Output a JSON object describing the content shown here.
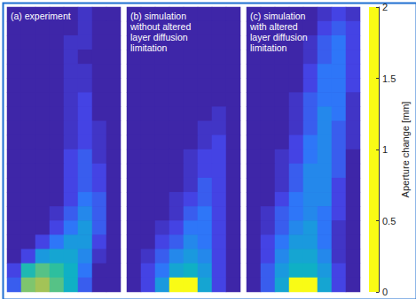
{
  "chart_data": {
    "type": "heatmap",
    "panels": [
      {
        "label": "(a) experiment",
        "cells": [
          [
            0,
            0,
            0,
            0,
            0,
            0.1,
            0,
            0
          ],
          [
            0,
            0,
            0,
            0,
            0,
            0.1,
            0,
            0
          ],
          [
            0,
            0,
            0,
            0,
            0.1,
            0.1,
            0,
            0
          ],
          [
            0,
            0,
            0,
            0,
            0.1,
            0,
            0,
            0
          ],
          [
            0,
            0,
            0,
            0,
            0.1,
            0.1,
            0,
            0
          ],
          [
            0,
            0,
            0,
            0,
            0.1,
            0.1,
            0,
            0
          ],
          [
            0,
            0,
            0,
            0,
            0.1,
            0.2,
            0,
            0
          ],
          [
            0,
            0,
            0,
            0,
            0.1,
            0.2,
            0,
            0
          ],
          [
            0,
            0,
            0,
            0,
            0.1,
            0.2,
            0.1,
            0
          ],
          [
            0,
            0,
            0,
            0,
            0.1,
            0.2,
            0.1,
            0
          ],
          [
            0,
            0,
            0,
            0,
            0.2,
            0.3,
            0.1,
            0
          ],
          [
            0,
            0,
            0,
            0,
            0.2,
            0.3,
            0.2,
            0
          ],
          [
            0,
            0,
            0,
            0,
            0.2,
            0.3,
            0.2,
            0
          ],
          [
            0,
            0,
            0,
            0,
            0.2,
            0.4,
            0.3,
            0
          ],
          [
            0,
            0,
            0,
            0.1,
            0.3,
            0.5,
            0.3,
            0
          ],
          [
            0,
            0,
            0,
            0.2,
            0.4,
            0.6,
            0.3,
            0
          ],
          [
            0,
            0,
            0.2,
            0.4,
            0.6,
            0.6,
            0.2,
            0
          ],
          [
            0,
            0.2,
            0.6,
            0.7,
            0.7,
            0.5,
            0.1,
            0
          ],
          [
            0.2,
            0.9,
            1.1,
            1.0,
            0.8,
            0.4,
            0,
            0
          ],
          [
            0.3,
            1.2,
            1.3,
            1.1,
            0.8,
            0.3,
            0,
            0
          ]
        ]
      },
      {
        "label": "(b) simulation\nwithout altered\nlayer diffusion\nlimitation",
        "cells": [
          [
            0,
            0,
            0,
            0,
            0,
            0,
            0,
            0
          ],
          [
            0,
            0,
            0,
            0,
            0,
            0,
            0,
            0
          ],
          [
            0,
            0,
            0,
            0,
            0,
            0,
            0,
            0
          ],
          [
            0,
            0,
            0,
            0,
            0,
            0,
            0,
            0
          ],
          [
            0,
            0,
            0,
            0,
            0,
            0,
            0,
            0
          ],
          [
            0,
            0,
            0,
            0,
            0,
            0,
            0,
            0
          ],
          [
            0,
            0,
            0,
            0,
            0,
            0,
            0,
            0
          ],
          [
            0,
            0,
            0,
            0,
            0,
            0,
            0.1,
            0
          ],
          [
            0,
            0,
            0,
            0,
            0,
            0.1,
            0.1,
            0
          ],
          [
            0,
            0,
            0,
            0,
            0,
            0.1,
            0.2,
            0
          ],
          [
            0,
            0,
            0,
            0,
            0.1,
            0.2,
            0.2,
            0
          ],
          [
            0,
            0,
            0,
            0,
            0.1,
            0.2,
            0.2,
            0
          ],
          [
            0,
            0,
            0,
            0,
            0.1,
            0.3,
            0.2,
            0
          ],
          [
            0,
            0,
            0,
            0.1,
            0.2,
            0.3,
            0.2,
            0
          ],
          [
            0,
            0,
            0,
            0.1,
            0.3,
            0.4,
            0.2,
            0
          ],
          [
            0,
            0,
            0.1,
            0.2,
            0.4,
            0.4,
            0.2,
            0
          ],
          [
            0,
            0,
            0.2,
            0.3,
            0.5,
            0.4,
            0.2,
            0
          ],
          [
            0,
            0.1,
            0.3,
            0.5,
            0.6,
            0.5,
            0.2,
            0
          ],
          [
            0,
            0.2,
            0.4,
            0.7,
            0.8,
            0.6,
            0.2,
            0
          ],
          [
            0,
            0.2,
            0.6,
            2.0,
            2.0,
            0.7,
            0.2,
            0
          ]
        ]
      },
      {
        "label": "(c) simulation\nwith altered\nlayer diffusion\nlimitation",
        "cells": [
          [
            0,
            0,
            0,
            0,
            0,
            0.1,
            0.2,
            0.1
          ],
          [
            0,
            0,
            0,
            0,
            0,
            0.2,
            0.3,
            0.2
          ],
          [
            0,
            0,
            0,
            0,
            0.1,
            0.3,
            0.4,
            0.2
          ],
          [
            0,
            0,
            0,
            0,
            0.1,
            0.3,
            0.4,
            0.2
          ],
          [
            0,
            0,
            0,
            0,
            0.2,
            0.4,
            0.4,
            0.2
          ],
          [
            0,
            0,
            0,
            0,
            0.2,
            0.4,
            0.4,
            0.2
          ],
          [
            0,
            0,
            0,
            0.1,
            0.3,
            0.4,
            0.4,
            0.1
          ],
          [
            0,
            0,
            0,
            0.1,
            0.3,
            0.5,
            0.4,
            0.1
          ],
          [
            0,
            0,
            0,
            0.1,
            0.3,
            0.5,
            0.3,
            0.1
          ],
          [
            0,
            0,
            0,
            0.2,
            0.4,
            0.5,
            0.3,
            0.1
          ],
          [
            0,
            0,
            0.1,
            0.2,
            0.4,
            0.5,
            0.3,
            0
          ],
          [
            0,
            0,
            0.1,
            0.3,
            0.5,
            0.5,
            0.3,
            0
          ],
          [
            0,
            0,
            0.1,
            0.3,
            0.5,
            0.5,
            0.2,
            0
          ],
          [
            0,
            0,
            0.2,
            0.4,
            0.5,
            0.5,
            0.2,
            0
          ],
          [
            0,
            0.1,
            0.3,
            0.4,
            0.5,
            0.4,
            0.2,
            0
          ],
          [
            0,
            0.1,
            0.3,
            0.5,
            0.6,
            0.4,
            0.1,
            0
          ],
          [
            0,
            0.2,
            0.4,
            0.6,
            0.6,
            0.4,
            0.1,
            0
          ],
          [
            0,
            0.2,
            0.5,
            0.7,
            0.7,
            0.5,
            0.1,
            0
          ],
          [
            0,
            0.3,
            0.6,
            0.8,
            0.8,
            0.6,
            0.2,
            0
          ],
          [
            0,
            0.3,
            0.7,
            2.0,
            2.0,
            0.7,
            0.2,
            0
          ]
        ]
      }
    ],
    "colorbar": {
      "range": [
        0,
        2
      ],
      "ticks": [
        0,
        0.5,
        1,
        1.5,
        2
      ],
      "label": "Aperture change [mm]"
    }
  }
}
